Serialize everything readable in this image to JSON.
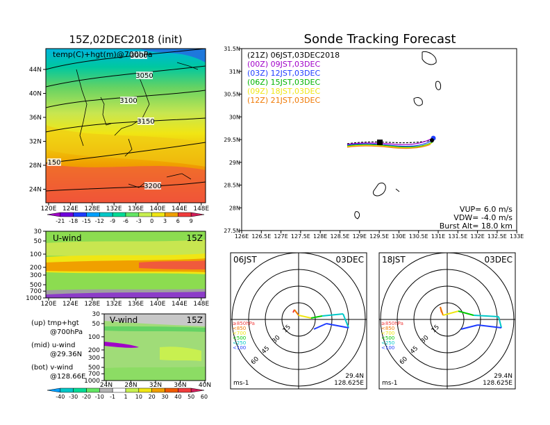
{
  "map_panel": {
    "title": "15Z,02DEC2018 (init)",
    "label": "temp(C)+hgt(m)@700hPa",
    "lat_ticks": [
      "44N",
      "40N",
      "36N",
      "32N",
      "28N",
      "24N"
    ],
    "lon_ticks": [
      "120E",
      "124E",
      "128E",
      "132E",
      "136E",
      "140E",
      "144E",
      "148E"
    ],
    "contour_labels": [
      "3000",
      "3050",
      "3100",
      "3150",
      "150",
      "3200"
    ]
  },
  "temp_colorbar": {
    "labels": [
      "-21",
      "-18",
      "-15",
      "-12",
      "-9",
      "-6",
      "-3",
      "0",
      "3",
      "6",
      "9"
    ],
    "colors": [
      "#a000c8",
      "#6e00dc",
      "#1e3cff",
      "#00a0ff",
      "#00c8c8",
      "#00dc96",
      "#64e664",
      "#c8f050",
      "#f0e614",
      "#f0a000",
      "#f03c3c",
      "#d21e5a"
    ]
  },
  "uwind_panel": {
    "label": "U-wind",
    "time": "15Z",
    "pres_ticks": [
      "30",
      "50",
      "100",
      "200",
      "300",
      "500",
      "700",
      "1000"
    ],
    "lon_ticks": [
      "120E",
      "124E",
      "128E",
      "132E",
      "136E",
      "140E",
      "144E",
      "148E"
    ]
  },
  "vwind_panel": {
    "label": "V-wind",
    "time": "15Z",
    "pres_ticks": [
      "30",
      "50",
      "100",
      "200",
      "300",
      "500",
      "700",
      "1000"
    ],
    "lat_ticks": [
      "24N",
      "28N",
      "32N",
      "36N",
      "40N"
    ]
  },
  "side_notes": [
    {
      "line1": "(up) tmp+hgt",
      "line2": "@700hPa"
    },
    {
      "line1": "(mid) u-wind",
      "line2": "@29.36N"
    },
    {
      "line1": "(bot) v-wind",
      "line2": "@128.66E"
    }
  ],
  "wind_colorbar": {
    "labels": [
      "-40",
      "-30",
      "-20",
      "-10",
      "-1",
      "1",
      "10",
      "20",
      "30",
      "40",
      "50",
      "60"
    ],
    "colors": [
      "#00a0ff",
      "#00c8c8",
      "#00dc96",
      "#64e664",
      "#b4b4b4",
      "#ffffff",
      "#c8f050",
      "#f0e614",
      "#f0a000",
      "#f05a00",
      "#f03c3c",
      "#d21e5a"
    ]
  },
  "tracking_panel": {
    "title": "Sonde Tracking Forecast",
    "legend": [
      {
        "text": "(21Z)  06JST,03DEC2018",
        "color": "#000000"
      },
      {
        "text": "(00Z)  09JST,03DEC",
        "color": "#a000c8"
      },
      {
        "text": "(03Z)  12JST,03DEC",
        "color": "#1e3cff"
      },
      {
        "text": "(06Z)  15JST,03DEC",
        "color": "#00b400"
      },
      {
        "text": "(09Z)  18JST,03DEC",
        "color": "#f0e614"
      },
      {
        "text": "(12Z)  21JST,03DEC",
        "color": "#f07800"
      }
    ],
    "lat_ticks": [
      "31.5N",
      "31N",
      "30.5N",
      "30N",
      "29.5N",
      "29N",
      "28.5N",
      "28N",
      "27.5N"
    ],
    "lon_ticks": [
      "126E",
      "126.5E",
      "127E",
      "127.5E",
      "128E",
      "128.5E",
      "129E",
      "129.5E",
      "130E",
      "130.5E",
      "131E",
      "131.5E",
      "132E",
      "132.5E",
      "133E"
    ],
    "params": [
      "VUP=  6.0  m/s",
      "VDW= -4.0  m/s",
      "Burst Alt=  18.0  km"
    ]
  },
  "polar_panels": [
    {
      "time": "06JST",
      "date": "03DEC",
      "unit": "ms-1",
      "lat": "29.4N",
      "lon": "128.625E",
      "ring_labels": [
        "15",
        "30",
        "45",
        "60"
      ],
      "legend": [
        "≥850hPa",
        "<850",
        "<700",
        "<500",
        "<250",
        "<100"
      ]
    },
    {
      "time": "18JST",
      "date": "03DEC",
      "unit": "ms-1",
      "lat": "29.4N",
      "lon": "128.625E",
      "ring_labels": [
        "15",
        "30",
        "45",
        "60"
      ],
      "legend": [
        "≥850hPa",
        "<850",
        "<700",
        "<500",
        "<250",
        "<100"
      ]
    }
  ],
  "polar_legend_colors": [
    "#f03c3c",
    "#f07800",
    "#f0e614",
    "#00c800",
    "#00c8c8",
    "#1e3cff"
  ]
}
